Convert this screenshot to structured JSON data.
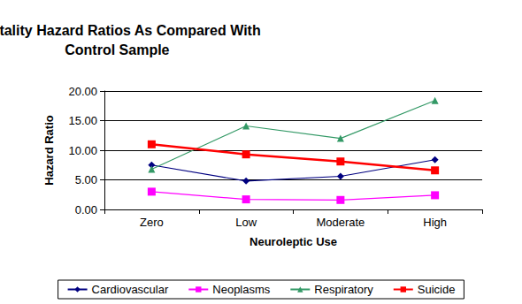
{
  "chart_data": {
    "type": "line",
    "title": "Mortality Hazard Ratios As Compared With\nControl Sample",
    "x_label": "Neuroleptic Use",
    "y_label": "Hazard Ratio",
    "categories": [
      "Zero",
      "Low",
      "Moderate",
      "High"
    ],
    "series": [
      {
        "name": "Cardiovascular",
        "color": "#000080",
        "marker": "diamond",
        "values": [
          7.5,
          4.8,
          5.6,
          8.4
        ]
      },
      {
        "name": "Neoplasms",
        "color": "#FF00FF",
        "marker": "square",
        "values": [
          3.0,
          1.7,
          1.6,
          2.4
        ]
      },
      {
        "name": "Respiratory",
        "color": "#339966",
        "marker": "triangle",
        "values": [
          6.8,
          14.1,
          12.0,
          18.4
        ]
      },
      {
        "name": "Suicide",
        "color": "#FF0000",
        "marker": "square",
        "values": [
          11.0,
          9.3,
          8.1,
          6.6
        ]
      }
    ],
    "ylim": [
      0,
      20
    ],
    "yticks": [
      {
        "value": 0,
        "label": "0.00"
      },
      {
        "value": 5,
        "label": "5.00"
      },
      {
        "value": 10,
        "label": "10.00"
      },
      {
        "value": 15,
        "label": "15.00"
      },
      {
        "value": 20,
        "label": "20.00"
      }
    ],
    "grid": true,
    "legend": "bottom"
  }
}
